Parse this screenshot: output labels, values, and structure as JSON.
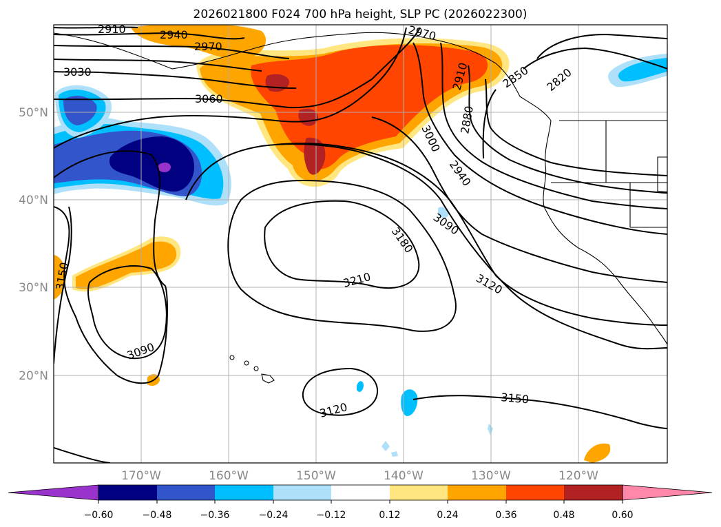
{
  "title": "2026021800 F024 700 hPa height, SLP PC (2026022300)",
  "map": {
    "lat_labels": [
      "50°N",
      "40°N",
      "30°N",
      "20°N"
    ],
    "lon_labels": [
      "170°W",
      "160°W",
      "150°W",
      "140°W",
      "130°W",
      "120°W"
    ],
    "contour_labels": [
      "2910",
      "2940",
      "2970",
      "3030",
      "3060",
      "2970",
      "2910",
      "2850",
      "2820",
      "2880",
      "3000",
      "2940",
      "3090",
      "3180",
      "3210",
      "3120",
      "3150",
      "3090",
      "3120",
      "3150"
    ]
  },
  "colorbar": {
    "ticks": [
      "−0.60",
      "−0.48",
      "−0.36",
      "−0.24",
      "−0.12",
      "0.12",
      "0.24",
      "0.36",
      "0.48",
      "0.60"
    ],
    "colors": [
      "#9933cc",
      "#000080",
      "#3355cc",
      "#00bfff",
      "#aee0fa",
      "#ffffff",
      "#ffe680",
      "#ffa500",
      "#ff4500",
      "#b22222",
      "#ff88aa"
    ]
  },
  "colors": {
    "frame": "#000000",
    "grid": "#b0b0b0",
    "contour": "#000000"
  }
}
